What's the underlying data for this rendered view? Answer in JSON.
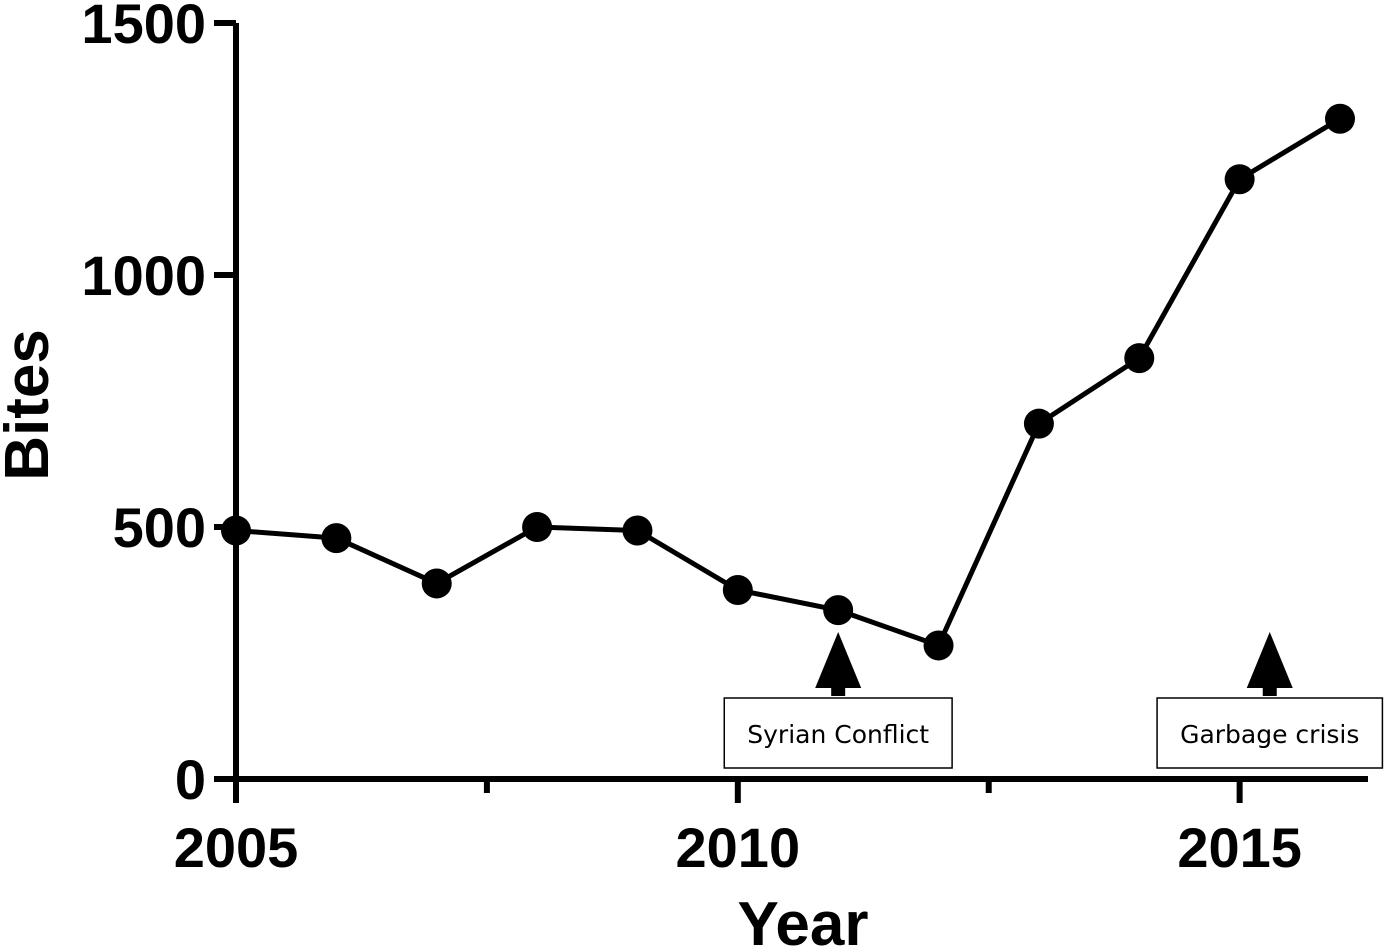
{
  "chart_data": {
    "type": "line",
    "title": "",
    "xlabel": "Year",
    "ylabel": "Bites",
    "xlim": [
      2005,
      2016
    ],
    "ylim": [
      0,
      1500
    ],
    "x_ticks": [
      2005,
      2010,
      2015
    ],
    "x_minor_ticks": [
      2007.5,
      2012.5
    ],
    "y_ticks": [
      0,
      500,
      1000,
      1500
    ],
    "series": [
      {
        "x": [
          2005,
          2006,
          2007,
          2008,
          2009,
          2010,
          2011,
          2012,
          2013,
          2014,
          2015,
          2016
        ],
        "values": [
          493,
          478,
          388,
          500,
          493,
          375,
          335,
          265,
          705,
          835,
          1190,
          1310
        ],
        "color": "#000000",
        "marker": "circle"
      }
    ],
    "annotations": [
      {
        "text": "Syrian Conflict",
        "x": 2011,
        "arrow": "up"
      },
      {
        "text": "Garbage crisis",
        "x": 2015.3,
        "arrow": "up"
      }
    ]
  }
}
